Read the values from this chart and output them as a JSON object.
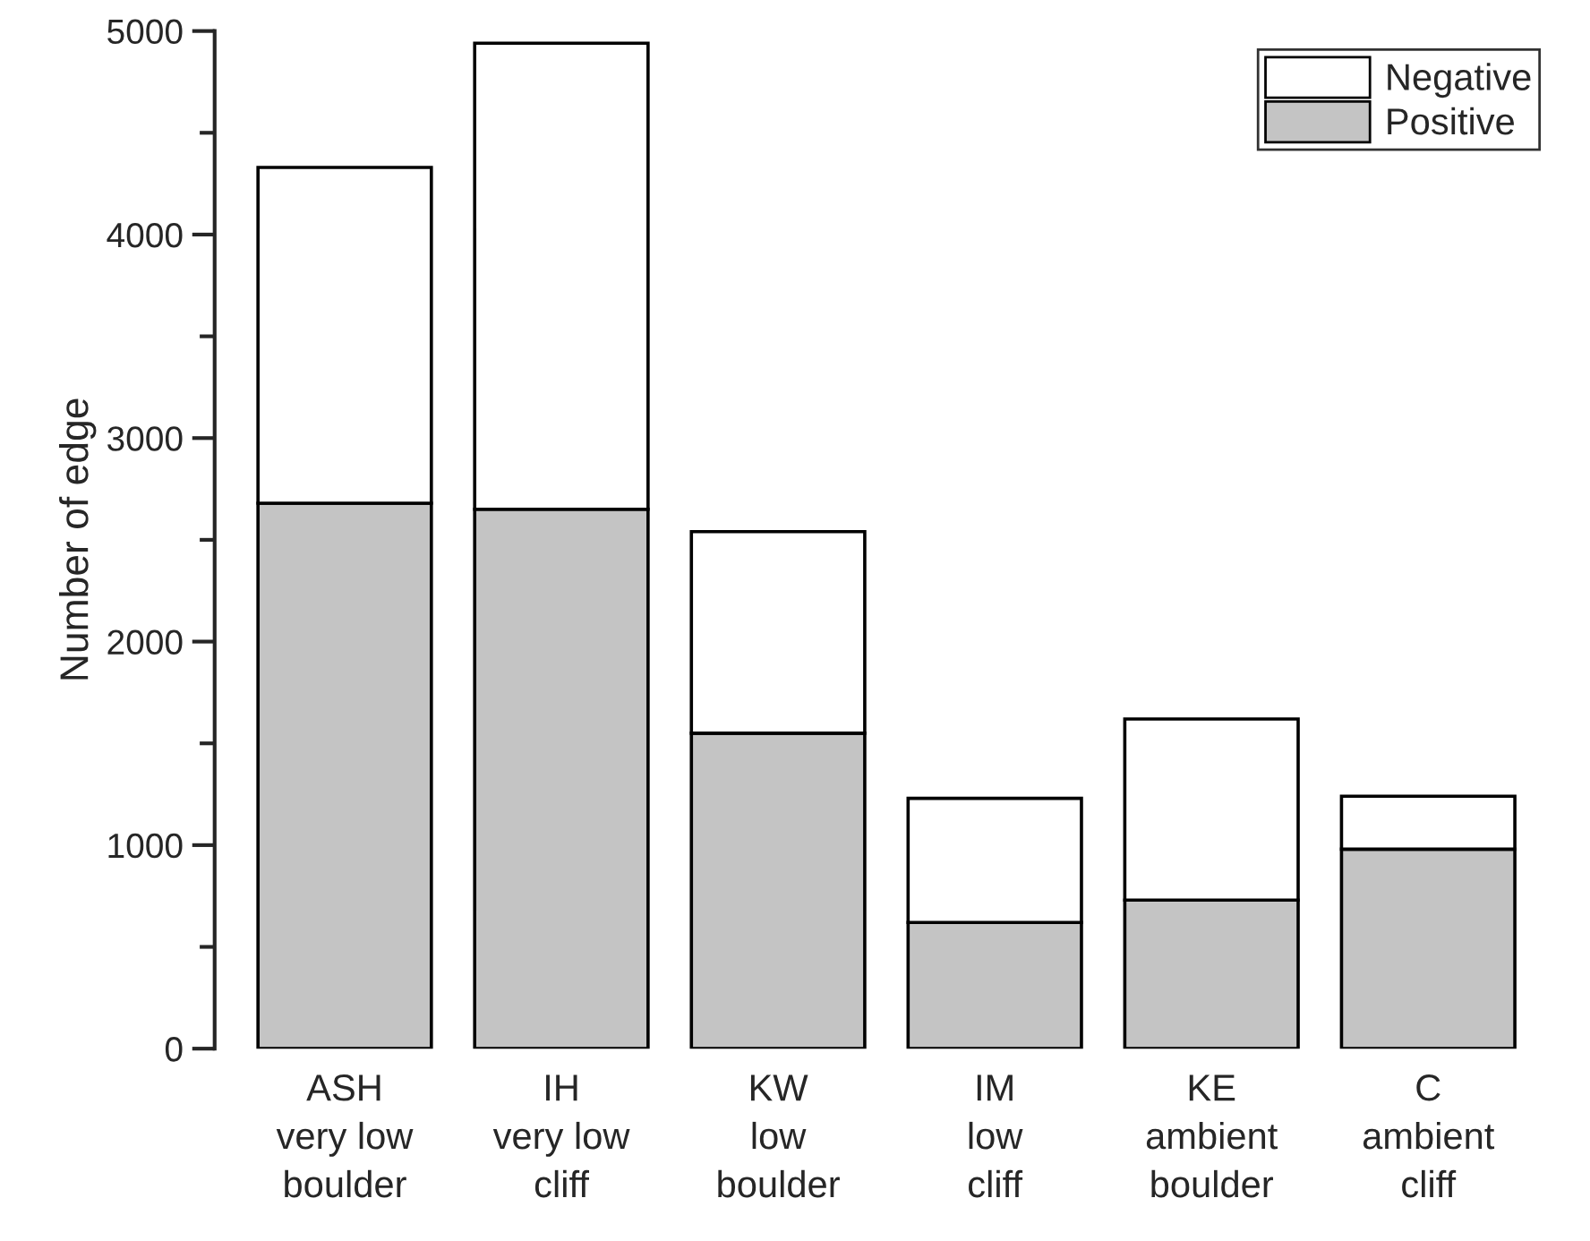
{
  "chart_data": {
    "type": "bar",
    "stacked": true,
    "ylabel": "Number of edge",
    "categories": [
      "ASH\nvery low\nboulder",
      "IH\nvery low\ncliff",
      "KW\nlow\nboulder",
      "IM\nlow\ncliff",
      "KE\nambient\nboulder",
      "C\nambient\ncliff"
    ],
    "series": [
      {
        "name": "Positive",
        "color": "#c4c4c4",
        "values": [
          2680,
          2650,
          1550,
          620,
          730,
          980
        ]
      },
      {
        "name": "Negative",
        "color": "#ffffff",
        "values": [
          1650,
          2290,
          990,
          610,
          890,
          260
        ]
      }
    ],
    "ylim": [
      0,
      5000
    ],
    "yticks": [
      0,
      1000,
      2000,
      3000,
      4000,
      5000
    ],
    "legend": "top right",
    "grid": false
  }
}
